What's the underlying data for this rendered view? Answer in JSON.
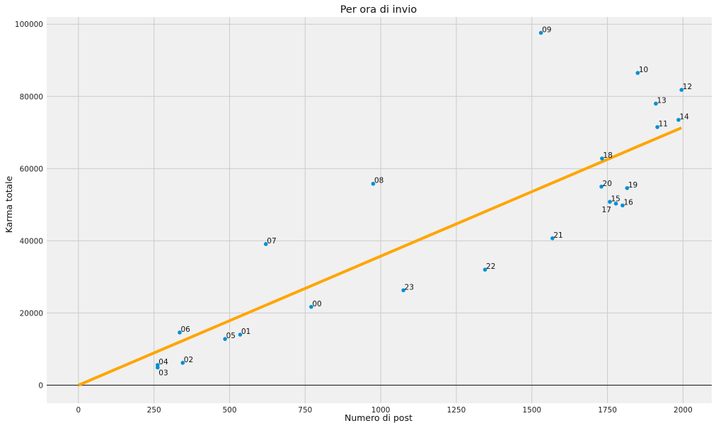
{
  "chart_data": {
    "type": "scatter",
    "title": "Per ora di invio",
    "xlabel": "Numero di post",
    "ylabel": "Karma totale",
    "xlim": [
      -105,
      2095
    ],
    "ylim": [
      -5000,
      102000
    ],
    "xticks": [
      0,
      250,
      500,
      750,
      1000,
      1250,
      1500,
      1750,
      2000
    ],
    "yticks": [
      0,
      20000,
      40000,
      60000,
      80000,
      100000
    ],
    "grid": true,
    "points": [
      {
        "label": "00",
        "x": 770,
        "y": 21700
      },
      {
        "label": "01",
        "x": 535,
        "y": 14000
      },
      {
        "label": "02",
        "x": 345,
        "y": 6200
      },
      {
        "label": "03",
        "x": 262,
        "y": 4900
      },
      {
        "label": "04",
        "x": 262,
        "y": 5600
      },
      {
        "label": "05",
        "x": 485,
        "y": 12800
      },
      {
        "label": "06",
        "x": 335,
        "y": 14600
      },
      {
        "label": "07",
        "x": 620,
        "y": 39100
      },
      {
        "label": "08",
        "x": 975,
        "y": 55800
      },
      {
        "label": "09",
        "x": 1530,
        "y": 97600
      },
      {
        "label": "10",
        "x": 1850,
        "y": 86500
      },
      {
        "label": "11",
        "x": 1915,
        "y": 71500
      },
      {
        "label": "12",
        "x": 1995,
        "y": 81800
      },
      {
        "label": "13",
        "x": 1910,
        "y": 78000
      },
      {
        "label": "14",
        "x": 1985,
        "y": 73500
      },
      {
        "label": "15",
        "x": 1758,
        "y": 50800
      },
      {
        "label": "16",
        "x": 1800,
        "y": 49800
      },
      {
        "label": "17",
        "x": 1778,
        "y": 50300
      },
      {
        "label": "18",
        "x": 1732,
        "y": 62800
      },
      {
        "label": "19",
        "x": 1815,
        "y": 54600
      },
      {
        "label": "20",
        "x": 1730,
        "y": 55000
      },
      {
        "label": "21",
        "x": 1568,
        "y": 40700
      },
      {
        "label": "22",
        "x": 1345,
        "y": 32000
      },
      {
        "label": "23",
        "x": 1075,
        "y": 26300
      }
    ],
    "trendline": {
      "x": [
        0,
        1995
      ],
      "y": [
        0,
        71300
      ]
    },
    "colors": {
      "background": "#f0f0f0",
      "grid": "#cbcbcb",
      "points": "#008fd5",
      "trendline": "#ffa500",
      "zero_line": "#333333"
    }
  }
}
